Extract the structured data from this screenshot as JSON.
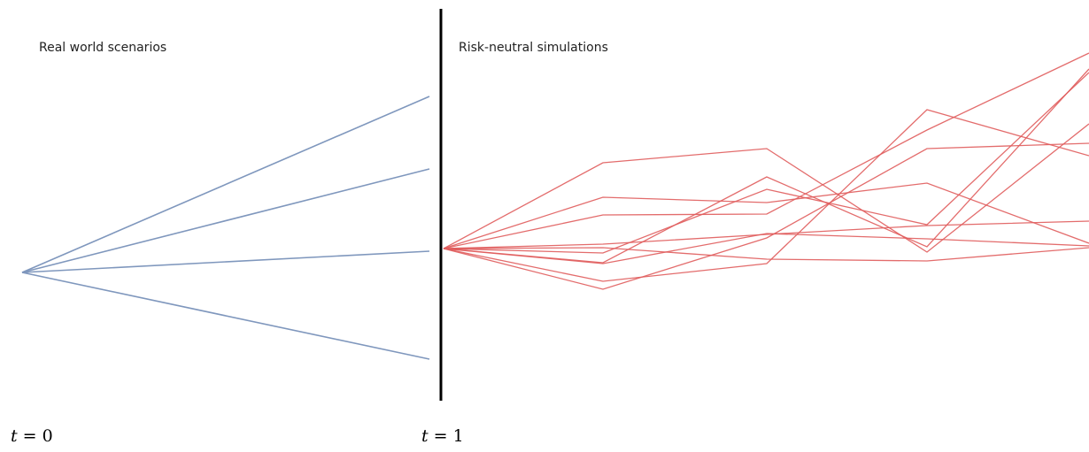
{
  "labels": {
    "real_world": "Real world scenarios",
    "risk_neutral": "Risk-neutral simulations",
    "t0_var": "t",
    "t0_rest": " = 0",
    "t1_var": "t",
    "t1_rest": " = 1"
  },
  "colors": {
    "real_world_paths": "#7f97bd",
    "risk_neutral_paths": "#e05c5c",
    "divider": "#000000"
  }
}
